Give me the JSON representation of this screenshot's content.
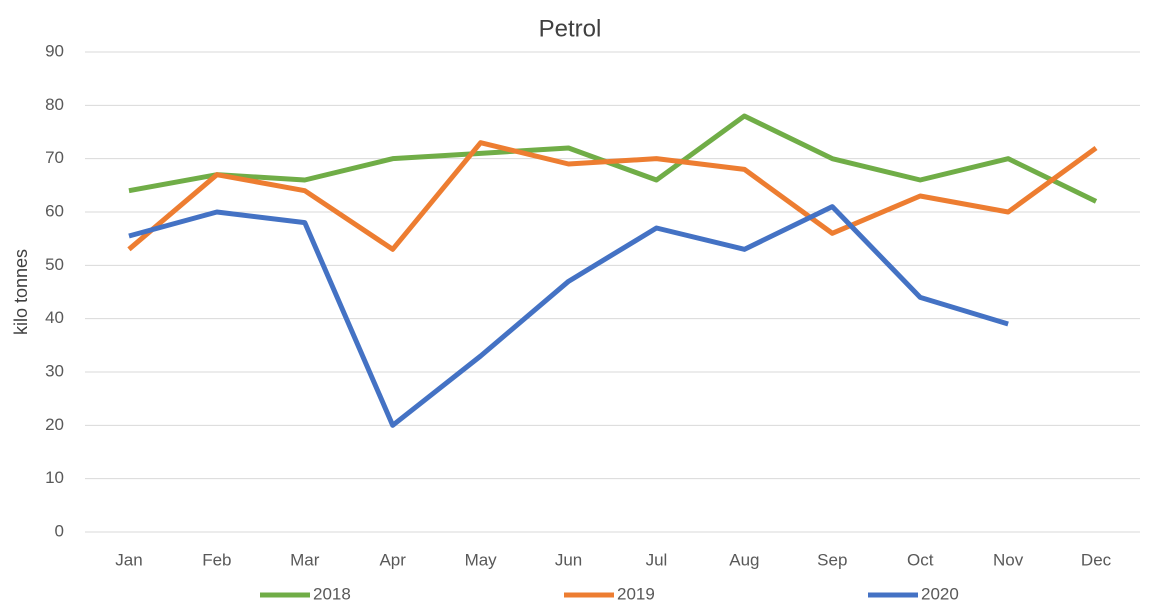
{
  "chart_data": {
    "type": "line",
    "title": "Petrol",
    "y_label": "kilo tonnes",
    "categories": [
      "Jan",
      "Feb",
      "Mar",
      "Apr",
      "May",
      "Jun",
      "Jul",
      "Aug",
      "Sep",
      "Oct",
      "Nov",
      "Dec"
    ],
    "series": [
      {
        "name": "2018",
        "color": "#70ad47",
        "values": [
          64,
          67,
          66,
          70,
          71,
          72,
          66,
          78,
          70,
          66,
          70,
          62
        ]
      },
      {
        "name": "2019",
        "color": "#ed7d31",
        "values": [
          53,
          67,
          64,
          53,
          73,
          69,
          70,
          68,
          56,
          63,
          60,
          72
        ]
      },
      {
        "name": "2020",
        "color": "#4472c4",
        "values": [
          55.5,
          60,
          58,
          20,
          33,
          47,
          57,
          53,
          61,
          44,
          39,
          null
        ]
      }
    ],
    "ylim": [
      0,
      90
    ],
    "yticks": [
      0,
      10,
      20,
      30,
      40,
      50,
      60,
      70,
      80,
      90
    ],
    "grid": true,
    "legend": "bottom"
  }
}
